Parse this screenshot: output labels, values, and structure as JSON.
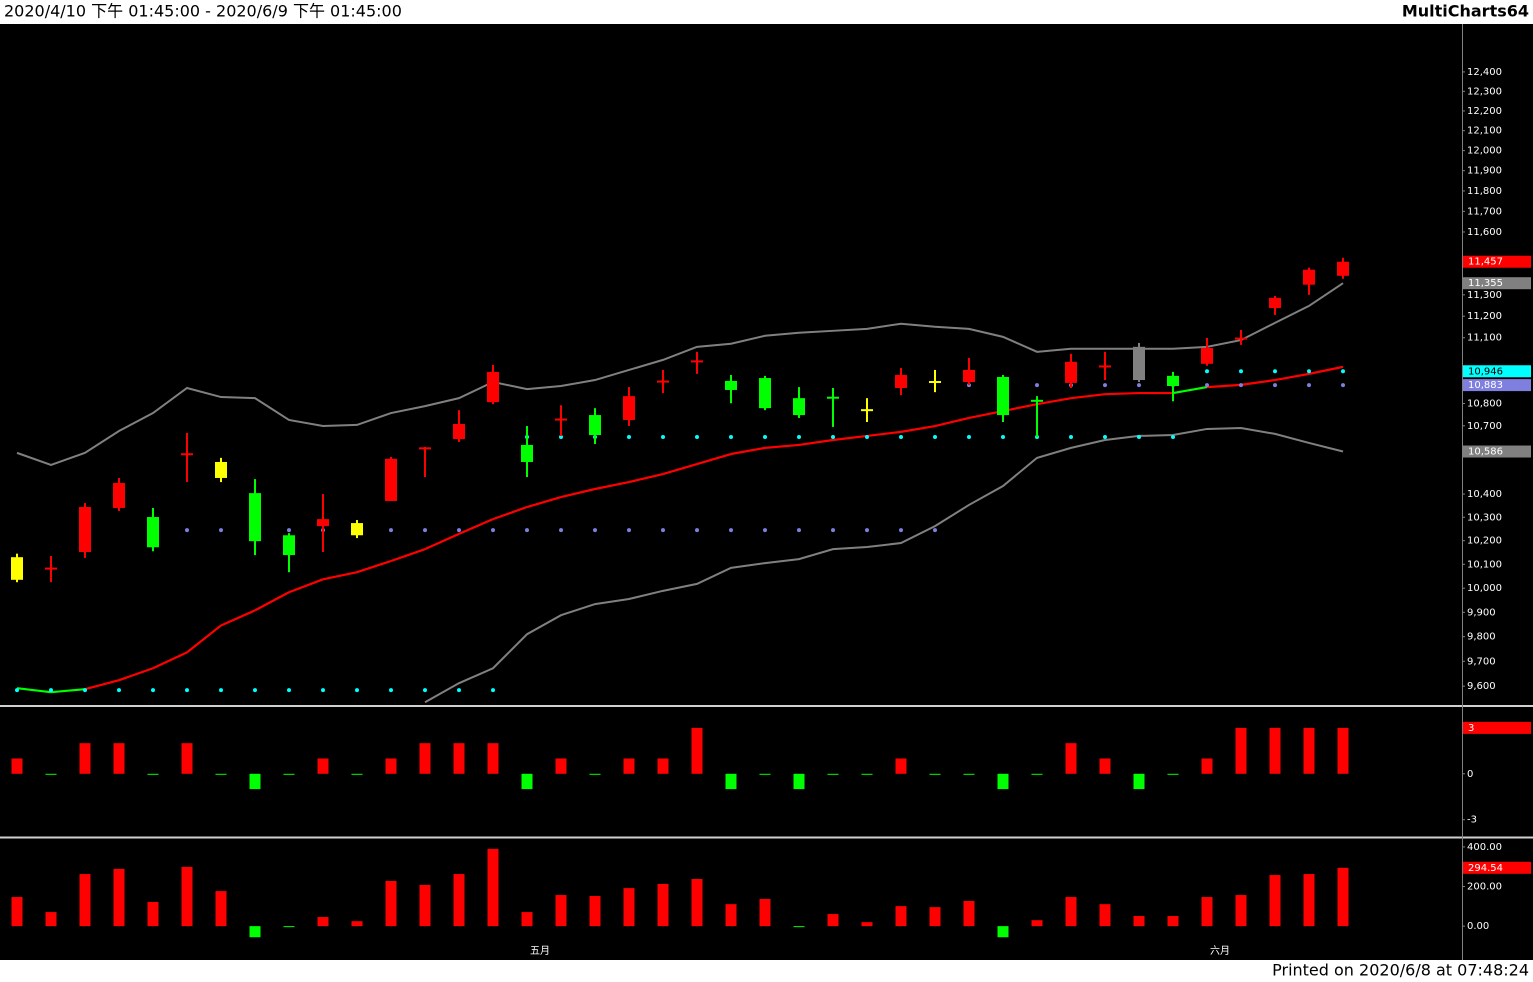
{
  "header": {
    "title": "2020/4/10 下午 01:45:00 - 2020/6/9 下午 01:45:00",
    "brand": "MultiCharts64"
  },
  "footer": "Printed on 2020/6/8 at 07:48:24",
  "chart_data": [
    {
      "type": "candlestick",
      "log_scale": true,
      "ylim": [
        9525,
        12650
      ],
      "yticks": [
        {
          "value": 12400,
          "label": "12,400"
        },
        {
          "value": 12300,
          "label": "12,300"
        },
        {
          "value": 12200,
          "label": "12,200"
        },
        {
          "value": 12100,
          "label": "12,100"
        },
        {
          "value": 12000,
          "label": "12,000"
        },
        {
          "value": 11900,
          "label": "11,900"
        },
        {
          "value": 11800,
          "label": "11,800"
        },
        {
          "value": 11700,
          "label": "11,700"
        },
        {
          "value": 11600,
          "label": "11,600"
        },
        {
          "value": 11300,
          "label": "11,300"
        },
        {
          "value": 11200,
          "label": "11,200"
        },
        {
          "value": 11100,
          "label": "11,100"
        },
        {
          "value": 10800,
          "label": "10,800"
        },
        {
          "value": 10700,
          "label": "10,700"
        },
        {
          "value": 10400,
          "label": "10,400"
        },
        {
          "value": 10300,
          "label": "10,300"
        },
        {
          "value": 10200,
          "label": "10,200"
        },
        {
          "value": 10100,
          "label": "10,100"
        },
        {
          "value": 10000,
          "label": "10,000"
        },
        {
          "value": 9900,
          "label": "9,900"
        },
        {
          "value": 9800,
          "label": "9,800"
        },
        {
          "value": 9700,
          "label": "9,700"
        },
        {
          "value": 9600,
          "label": "9,600"
        }
      ],
      "open": [
        10130,
        10078,
        10152,
        10340,
        10301,
        10568,
        10540,
        10404,
        10223,
        10262,
        10275,
        10370,
        10595,
        10641,
        10806,
        10615,
        10724,
        10748,
        10726,
        10895,
        10987,
        10902,
        10915,
        10824,
        10826,
        10770,
        10870,
        10897,
        10897,
        10920,
        10812,
        10893,
        10964,
        11058,
        10925,
        10980,
        11092,
        11238,
        11348,
        11390
      ],
      "high": [
        10145,
        10135,
        10361,
        10470,
        10340,
        10668,
        10558,
        10465,
        10232,
        10400,
        10288,
        10562,
        10606,
        10770,
        10975,
        10699,
        10792,
        10779,
        10874,
        10952,
        11035,
        10929,
        10925,
        10874,
        10870,
        10824,
        10961,
        10952,
        11007,
        10929,
        10833,
        11026,
        11035,
        11076,
        10943,
        11099,
        11136,
        11295,
        11429,
        11476
      ],
      "low": [
        10025,
        10025,
        10127,
        10327,
        10155,
        10452,
        10452,
        10139,
        10067,
        10152,
        10211,
        10370,
        10474,
        10628,
        10797,
        10474,
        10655,
        10619,
        10699,
        10847,
        10934,
        10801,
        10770,
        10735,
        10695,
        10717,
        10838,
        10851,
        10884,
        10717,
        10650,
        10870,
        10906,
        10897,
        10810,
        10971,
        11067,
        11206,
        11300,
        11376
      ],
      "close": [
        10035,
        10082,
        10344,
        10448,
        10172,
        10574,
        10470,
        10198,
        10139,
        10292,
        10223,
        10554,
        10600,
        10708,
        10943,
        10540,
        10728,
        10659,
        10833,
        10899,
        10991,
        10861,
        10779,
        10748,
        10822,
        10770,
        10929,
        10897,
        10952,
        10748,
        10808,
        10989,
        10968,
        10906,
        10879,
        11053,
        11096,
        11286,
        11419,
        11457
      ],
      "candle_colors": [
        "#ffff00",
        "#ff0000",
        "#ff0000",
        "#ff0000",
        "#00ff00",
        "#ff0000",
        "#ffff00",
        "#00ff00",
        "#00ff00",
        "#ff0000",
        "#ffff00",
        "#ff0000",
        "#ff0000",
        "#ff0000",
        "#ff0000",
        "#00ff00",
        "#ff0000",
        "#00ff00",
        "#ff0000",
        "#ff0000",
        "#ff0000",
        "#00ff00",
        "#00ff00",
        "#00ff00",
        "#00ff00",
        "#ffff00",
        "#ff0000",
        "#ffff00",
        "#ff0000",
        "#00ff00",
        "#00ff00",
        "#ff0000",
        "#ff0000",
        "#808080",
        "#00ff00",
        "#ff0000",
        "#ff0000",
        "#ff0000",
        "#ff0000",
        "#ff0000"
      ],
      "series": [
        {
          "style": "line",
          "color": "#808080",
          "values": [
            10580,
            10527,
            10580,
            10677,
            10757,
            10870,
            10829,
            10824,
            10726,
            10699,
            10704,
            10757,
            10788,
            10824,
            10897,
            10865,
            10879,
            10906,
            10952,
            10998,
            11058,
            11072,
            11109,
            11123,
            11132,
            11141,
            11165,
            11151,
            11141,
            11104,
            11035,
            11049,
            11049,
            11049,
            11049,
            11058,
            11089,
            11169,
            11248,
            11355
          ]
        },
        {
          "style": "line",
          "color": "#ff0000",
          "point_colors": [
            "#00ff00",
            "#00ff00",
            "#00ff00",
            "#ff0000",
            "#ff0000",
            "#ff0000",
            "#ff0000",
            "#ff0000",
            "#ff0000",
            "#ff0000",
            "#ff0000",
            "#ff0000",
            "#ff0000",
            "#ff0000",
            "#ff0000",
            "#ff0000",
            "#ff0000",
            "#ff0000",
            "#ff0000",
            "#ff0000",
            "#ff0000",
            "#ff0000",
            "#ff0000",
            "#ff0000",
            "#ff0000",
            "#ff0000",
            "#ff0000",
            "#ff0000",
            "#ff0000",
            "#ff0000",
            "#ff0000",
            "#ff0000",
            "#ff0000",
            "#ff0000",
            "#ff0000",
            "#00ff00",
            "#ff0000",
            "#ff0000",
            "#ff0000",
            "#ff0000"
          ],
          "values": [
            9592,
            9576,
            9588,
            9624,
            9672,
            9736,
            9846,
            9908,
            9983,
            10037,
            10067,
            10114,
            10164,
            10229,
            10292,
            10344,
            10387,
            10422,
            10452,
            10487,
            10531,
            10575,
            10602,
            10615,
            10637,
            10655,
            10673,
            10699,
            10735,
            10766,
            10797,
            10824,
            10842,
            10847,
            10847,
            10874,
            10884,
            10906,
            10934,
            10966
          ]
        },
        {
          "style": "line",
          "color": "#808080",
          "values": [
            null,
            null,
            null,
            null,
            null,
            null,
            null,
            null,
            null,
            null,
            null,
            null,
            9536,
            9612,
            9672,
            9810,
            9888,
            9934,
            9955,
            9989,
            10018,
            10085,
            10105,
            10122,
            10164,
            10173,
            10190,
            10262,
            10353,
            10435,
            10558,
            10602,
            10637,
            10655,
            10659,
            10686,
            10690,
            10664,
            10624,
            10586
          ]
        },
        {
          "style": "dots",
          "color": "#00ffff",
          "values": [
            9584,
            9584,
            9584,
            9584,
            9584,
            9584,
            9584,
            9584,
            9584,
            9584,
            9584,
            9584,
            9584,
            9584,
            9584,
            10650,
            10650,
            10650,
            10650,
            10650,
            10650,
            10650,
            10650,
            10650,
            10650,
            10650,
            10650,
            10650,
            10650,
            10650,
            10650,
            10650,
            10650,
            10650,
            10650,
            10946,
            10946,
            10946,
            10946,
            10946
          ]
        },
        {
          "style": "dots",
          "color": "#7f7fdf",
          "values": [
            null,
            null,
            null,
            null,
            null,
            10245,
            10245,
            10245,
            10245,
            10245,
            10245,
            10245,
            10245,
            10245,
            10245,
            10245,
            10245,
            10245,
            10245,
            10245,
            10245,
            10245,
            10245,
            10245,
            10245,
            10245,
            10245,
            10245,
            10883,
            10883,
            10883,
            10883,
            10883,
            10883,
            10883,
            10883,
            10883,
            10883,
            10883,
            10883
          ]
        }
      ],
      "markers": [
        {
          "value": 11457,
          "label": "11,457",
          "color": "#ff0000"
        },
        {
          "value": 11355,
          "label": "11,355",
          "color": "#808080"
        },
        {
          "value": 10946,
          "label": "10,946",
          "color": "#00ffff"
        },
        {
          "value": 10883,
          "label": "10,883",
          "color": "#7f7fdf"
        },
        {
          "value": 10586,
          "label": "10,586",
          "color": "#808080"
        }
      ]
    },
    {
      "type": "bar",
      "ylim": [
        -4,
        4.3
      ],
      "yticks": [
        0,
        -3
      ],
      "up_color": "#ff0000",
      "down_color": "#00ff00",
      "values": [
        1,
        0,
        2,
        2,
        0,
        2,
        0,
        -1,
        0,
        1,
        0,
        1,
        2,
        2,
        2,
        -1,
        1,
        0,
        1,
        1,
        3,
        -1,
        0,
        -1,
        0,
        0,
        1,
        0,
        0,
        -1,
        0,
        2,
        1,
        -1,
        0,
        1,
        3,
        3,
        3,
        3
      ],
      "markers": [
        {
          "value": 3,
          "label": "3",
          "color": "#ff0000"
        }
      ]
    },
    {
      "type": "bar",
      "ylim": [
        -70,
        435
      ],
      "yticks": [
        {
          "value": 400,
          "label": "400.00"
        },
        {
          "value": 200,
          "label": "200.00"
        },
        {
          "value": 0,
          "label": "0.00"
        }
      ],
      "up_color": "#ff0000",
      "down_color": "#00ff00",
      "values": [
        147,
        71,
        263,
        289,
        122,
        299,
        177,
        -56,
        -5,
        46,
        25,
        228,
        208,
        263,
        390,
        71,
        157,
        152,
        192,
        213,
        238,
        111,
        137,
        0,
        61,
        20,
        101,
        96,
        127,
        -56,
        30,
        147,
        111,
        51,
        51,
        147,
        157,
        258,
        263,
        294.54
      ],
      "categories": [
        null,
        null,
        null,
        null,
        null,
        null,
        null,
        null,
        null,
        null,
        null,
        null,
        null,
        null,
        null,
        "五月",
        null,
        null,
        null,
        null,
        null,
        null,
        null,
        null,
        null,
        null,
        null,
        null,
        null,
        null,
        null,
        null,
        null,
        null,
        null,
        "六月",
        null,
        null,
        null,
        null
      ],
      "markers": [
        {
          "value": 294.54,
          "label": "294.54",
          "color": "#ff0000"
        }
      ]
    }
  ]
}
